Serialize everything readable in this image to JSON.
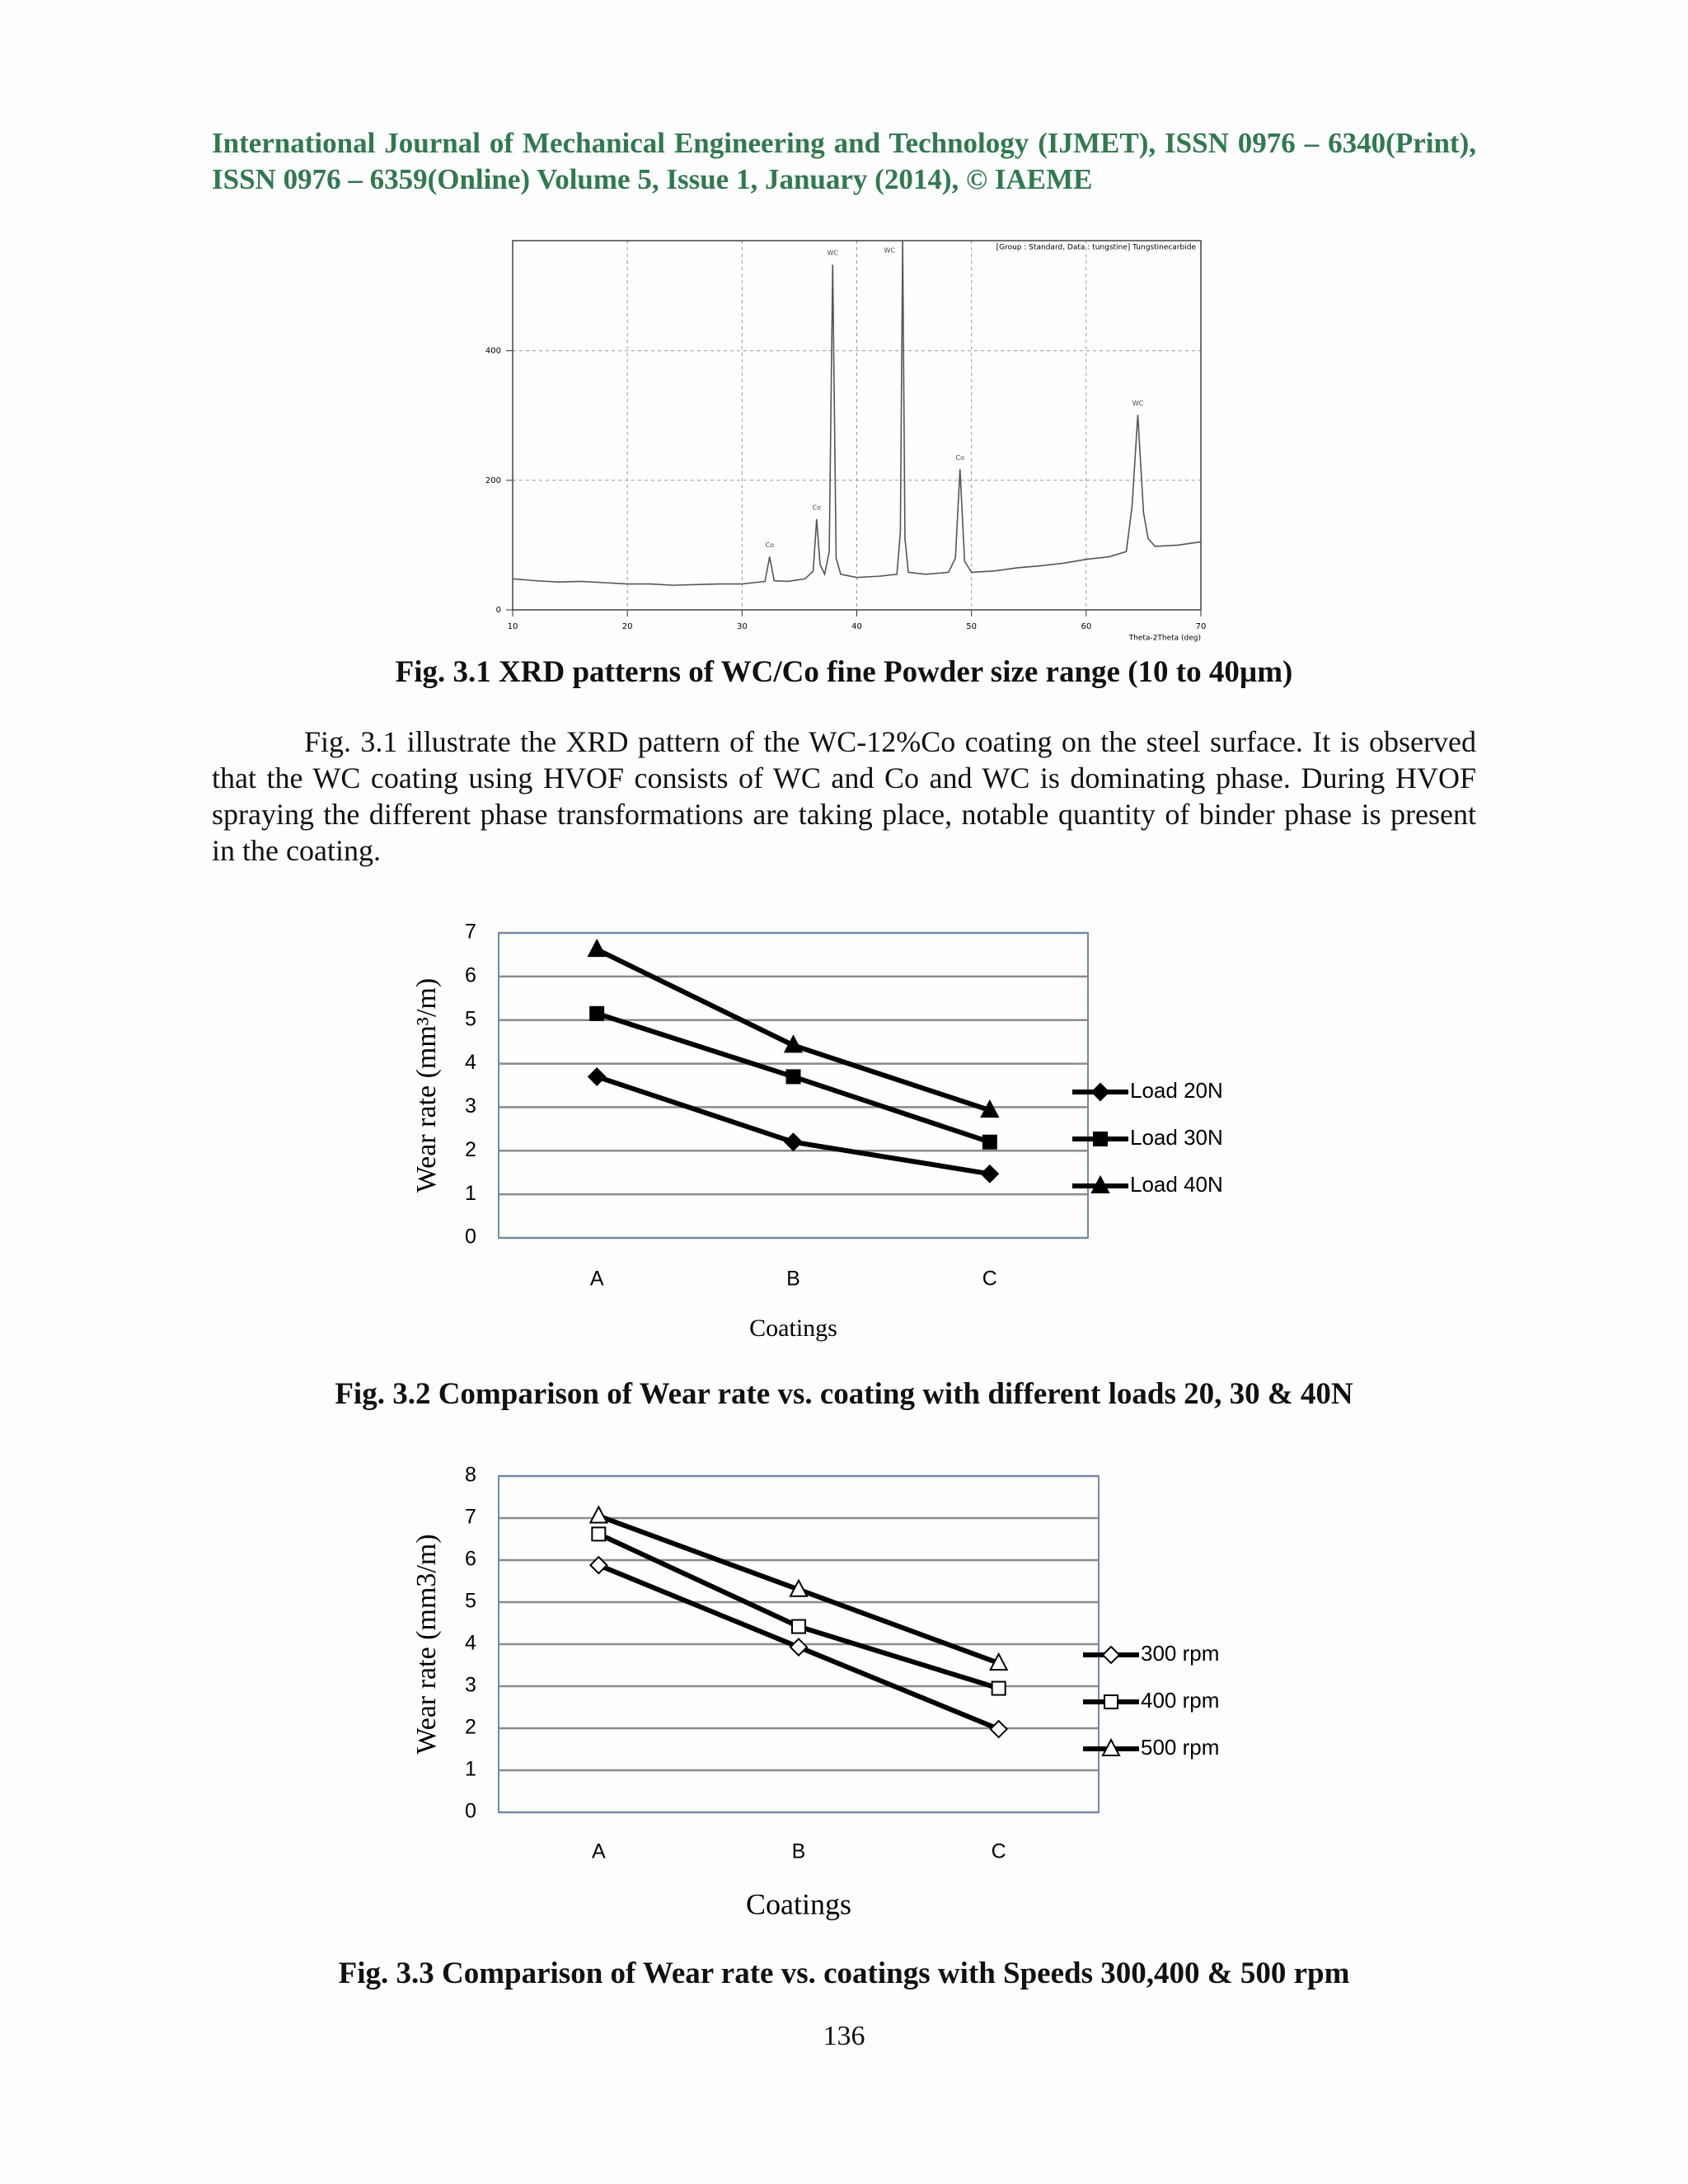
{
  "header": {
    "title": "International Journal of Mechanical Engineering and Technology (IJMET), ISSN 0976 – 6340(Print), ISSN 0976 – 6359(Online) Volume 5, Issue 1, January (2014), © IAEME"
  },
  "paragraph": "Fig. 3.1 illustrate the XRD pattern of the WC-12%Co coating on the steel surface. It is observed that the WC coating using HVOF consists of WC and Co and WC is dominating phase. During HVOF spraying the different phase transformations are taking place, notable quantity of binder phase is present in the coating.",
  "page_number": "136",
  "chart_data": [
    {
      "type": "xrd",
      "caption": "Fig. 3.1 XRD patterns of WC/Co fine Powder size range (10 to 40µm)",
      "legend_text": "[Group : Standard, Data : tungstine] Tungstinecarbide",
      "x_label": "Theta-2Theta (deg)",
      "x": [
        10,
        12,
        14,
        16,
        18,
        20,
        22,
        24,
        26,
        28,
        30,
        31,
        32,
        32.4,
        32.8,
        34,
        35.5,
        36.2,
        36.5,
        36.8,
        37.2,
        37.6,
        37.9,
        38.2,
        38.6,
        40,
        42,
        43.5,
        43.8,
        44,
        44.2,
        44.5,
        46,
        48,
        48.6,
        49,
        49.4,
        50,
        52,
        54,
        56,
        58,
        60,
        62,
        63.5,
        64,
        64.5,
        65,
        65.4,
        66,
        68,
        70
      ],
      "series": [
        {
          "name": "Tungstinecarbide",
          "color": "#555555",
          "values": [
            48,
            45,
            43,
            44,
            42,
            40,
            40,
            38,
            39,
            40,
            40,
            42,
            44,
            82,
            45,
            44,
            48,
            60,
            140,
            70,
            55,
            90,
            533,
            80,
            55,
            50,
            52,
            55,
            120,
            570,
            110,
            58,
            55,
            58,
            80,
            217,
            75,
            58,
            60,
            65,
            68,
            72,
            78,
            82,
            90,
            160,
            301,
            150,
            110,
            98,
            100,
            105
          ]
        }
      ],
      "annotations": [
        {
          "text": "Co",
          "x": 32.4
        },
        {
          "text": "Co",
          "x": 36.5
        },
        {
          "text": "WC",
          "x": 37.9
        },
        {
          "text": "WC",
          "x": 44
        },
        {
          "text": "Co",
          "x": 49
        },
        {
          "text": "WC",
          "x": 64.5
        }
      ],
      "xlim": [
        10,
        70
      ],
      "xticks": [
        10,
        20,
        30,
        40,
        50,
        60,
        70
      ],
      "ylim": [
        0,
        570
      ],
      "yticks": [
        0,
        200,
        400
      ],
      "grid": true
    },
    {
      "type": "line",
      "caption": "Fig. 3.2  Comparison of Wear rate vs. coating with different loads 20, 30 & 40N",
      "y_label": "Wear rate (mm³/m)",
      "x_label": "Coatings",
      "categories": [
        "A",
        "B",
        "C"
      ],
      "series": [
        {
          "name": "Load 20N",
          "color": "#000000",
          "marker": "diamond",
          "filled": true,
          "values": [
            3.7,
            2.2,
            1.47
          ]
        },
        {
          "name": "Load 30N",
          "color": "#000000",
          "marker": "square",
          "filled": true,
          "values": [
            5.15,
            3.7,
            2.2
          ]
        },
        {
          "name": "Load 40N",
          "color": "#000000",
          "marker": "triangle",
          "filled": true,
          "values": [
            6.62,
            4.42,
            2.93
          ]
        }
      ],
      "ylim": [
        0,
        7
      ],
      "yticks": [
        0,
        1,
        2,
        3,
        4,
        5,
        6,
        7
      ],
      "grid": true,
      "legend": "right"
    },
    {
      "type": "line",
      "caption": "Fig. 3.3 Comparison of Wear rate vs. coatings with Speeds 300,400 & 500 rpm",
      "y_label": "Wear rate (mm3/m)",
      "x_label": "Coatings",
      "categories": [
        "A",
        "B",
        "C"
      ],
      "series": [
        {
          "name": "300 rpm",
          "color": "#000000",
          "marker": "diamond",
          "filled": false,
          "values": [
            5.88,
            3.93,
            1.98
          ]
        },
        {
          "name": "400 rpm",
          "color": "#000000",
          "marker": "square",
          "filled": false,
          "values": [
            6.62,
            4.42,
            2.95
          ]
        },
        {
          "name": "500 rpm",
          "color": "#000000",
          "marker": "triangle",
          "filled": false,
          "values": [
            7.05,
            5.3,
            3.55
          ]
        }
      ],
      "ylim": [
        0,
        8
      ],
      "yticks": [
        0,
        1,
        2,
        3,
        4,
        5,
        6,
        7,
        8
      ],
      "grid": true,
      "legend": "right"
    }
  ]
}
